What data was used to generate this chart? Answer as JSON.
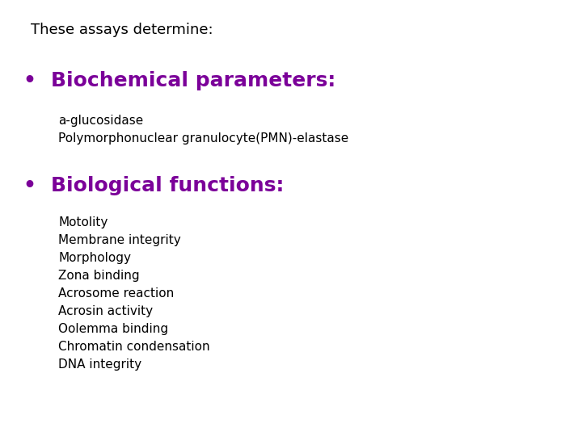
{
  "background_color": "#ffffff",
  "title_text": "These assays determine:",
  "title_color": "#000000",
  "title_fontsize": 13,
  "bullet_color": "#7B0099",
  "bullet1_text": "Biochemical parameters:",
  "bullet1_fontsize": 18,
  "bio_chem_items": [
    "a-glucosidase",
    "Polymorphonuclear granulocyte(PMN)-elastase"
  ],
  "biocitem_fontsize": 11,
  "biocitem_color": "#000000",
  "bullet2_text": "Biological functions:",
  "bullet2_fontsize": 18,
  "biofunc_items": [
    "Motolity",
    "Membrane integrity",
    "Morphology",
    "Zona binding",
    "Acrosome reaction",
    "Acrosin activity",
    "Oolemma binding",
    "Chromatin condensation",
    "DNA integrity"
  ],
  "biofunc_fontsize": 11,
  "biofunc_color": "#000000",
  "bullet_marker": "•"
}
